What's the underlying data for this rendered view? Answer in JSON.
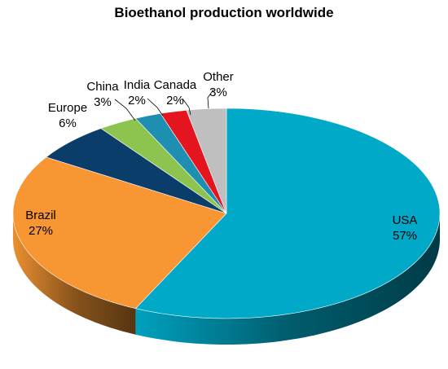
{
  "chart_data": {
    "type": "pie",
    "title": "Bioethanol production worldwide",
    "slices": [
      {
        "name": "USA",
        "value": 57,
        "label": "57%",
        "color": "#00A9C8"
      },
      {
        "name": "Brazil",
        "value": 27,
        "label": "27%",
        "color": "#F79633"
      },
      {
        "name": "Europe",
        "value": 6,
        "label": "6%",
        "color": "#0B3D6B"
      },
      {
        "name": "China",
        "value": 3,
        "label": "3%",
        "color": "#8DC34F"
      },
      {
        "name": "India",
        "value": 2,
        "label": "2%",
        "color": "#1E8FB0"
      },
      {
        "name": "Canada",
        "value": 2,
        "label": "2%",
        "color": "#E5151F"
      },
      {
        "name": "Other",
        "value": 3,
        "label": "3%",
        "color": "#BFBFBF"
      }
    ],
    "legend": "none",
    "style": "3d"
  }
}
